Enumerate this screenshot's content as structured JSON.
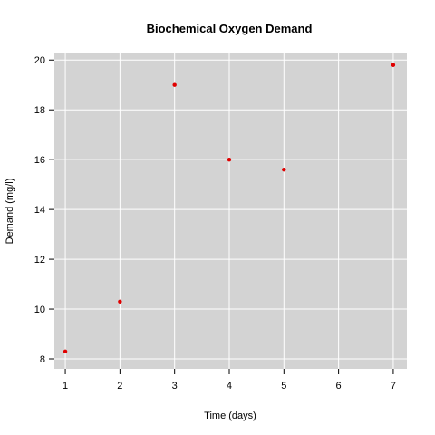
{
  "chart_data": {
    "type": "scatter",
    "title": "Biochemical Oxygen Demand",
    "xlabel": "Time (days)",
    "ylabel": "Demand (mg/l)",
    "xlim": [
      0.8,
      7.25
    ],
    "ylim": [
      7.6,
      20.3
    ],
    "x_ticks": [
      1,
      2,
      3,
      4,
      5,
      6,
      7
    ],
    "y_ticks": [
      8,
      10,
      12,
      14,
      16,
      18,
      20
    ],
    "grid": true,
    "background_color": "#d3d3d3",
    "point_color": "#e00000",
    "points": [
      {
        "x": 1,
        "y": 8.3
      },
      {
        "x": 2,
        "y": 10.3
      },
      {
        "x": 3,
        "y": 19.0
      },
      {
        "x": 4,
        "y": 16.0
      },
      {
        "x": 5,
        "y": 15.6
      },
      {
        "x": 7,
        "y": 19.8
      }
    ]
  }
}
